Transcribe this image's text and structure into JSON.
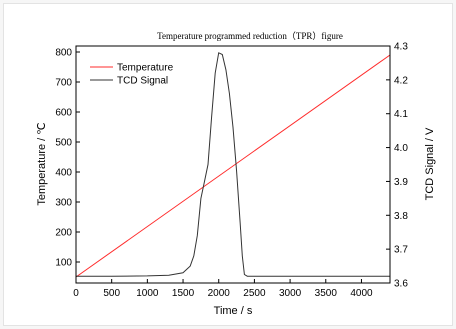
{
  "chart_data": {
    "type": "line",
    "title": "Temperature programmed reduction（TPR）figure",
    "xlabel": "Time / s",
    "ylabel_left": "Temperature / ℃",
    "ylabel_right": "TCD Signal / V",
    "xlim": [
      0,
      4400
    ],
    "ylim_left": [
      30,
      820
    ],
    "ylim_right": [
      3.6,
      4.3
    ],
    "x_ticks": [
      0,
      500,
      1000,
      1500,
      2000,
      2500,
      3000,
      3500,
      4000
    ],
    "y_left_ticks": [
      100,
      200,
      300,
      400,
      500,
      600,
      700,
      800
    ],
    "y_right_ticks": [
      3.6,
      3.7,
      3.8,
      3.9,
      4.0,
      4.1,
      4.2,
      4.3
    ],
    "y_right_tick_labels": [
      "3.6",
      "3.7",
      "3.8",
      "3.9",
      "4.0",
      "4.1",
      "4.2",
      "4.3"
    ],
    "legend_position": "top-left",
    "grid": false,
    "series": [
      {
        "name": "Temperature",
        "axis": "left",
        "color": "#ff2b2b",
        "x": [
          0,
          4400
        ],
        "y": [
          50,
          790
        ]
      },
      {
        "name": "TCD Signal",
        "axis": "right",
        "color": "#333333",
        "x": [
          0,
          500,
          1000,
          1300,
          1500,
          1600,
          1650,
          1700,
          1750,
          1800,
          1850,
          1900,
          1950,
          2000,
          2050,
          2100,
          2150,
          2200,
          2250,
          2300,
          2330,
          2360,
          2400,
          2500,
          3000,
          3500,
          4000,
          4400
        ],
        "y": [
          3.62,
          3.62,
          3.621,
          3.623,
          3.63,
          3.65,
          3.68,
          3.74,
          3.85,
          3.9,
          3.95,
          4.09,
          4.22,
          4.28,
          4.275,
          4.23,
          4.16,
          4.06,
          3.93,
          3.78,
          3.68,
          3.625,
          3.62,
          3.62,
          3.62,
          3.62,
          3.62,
          3.62
        ]
      }
    ]
  }
}
